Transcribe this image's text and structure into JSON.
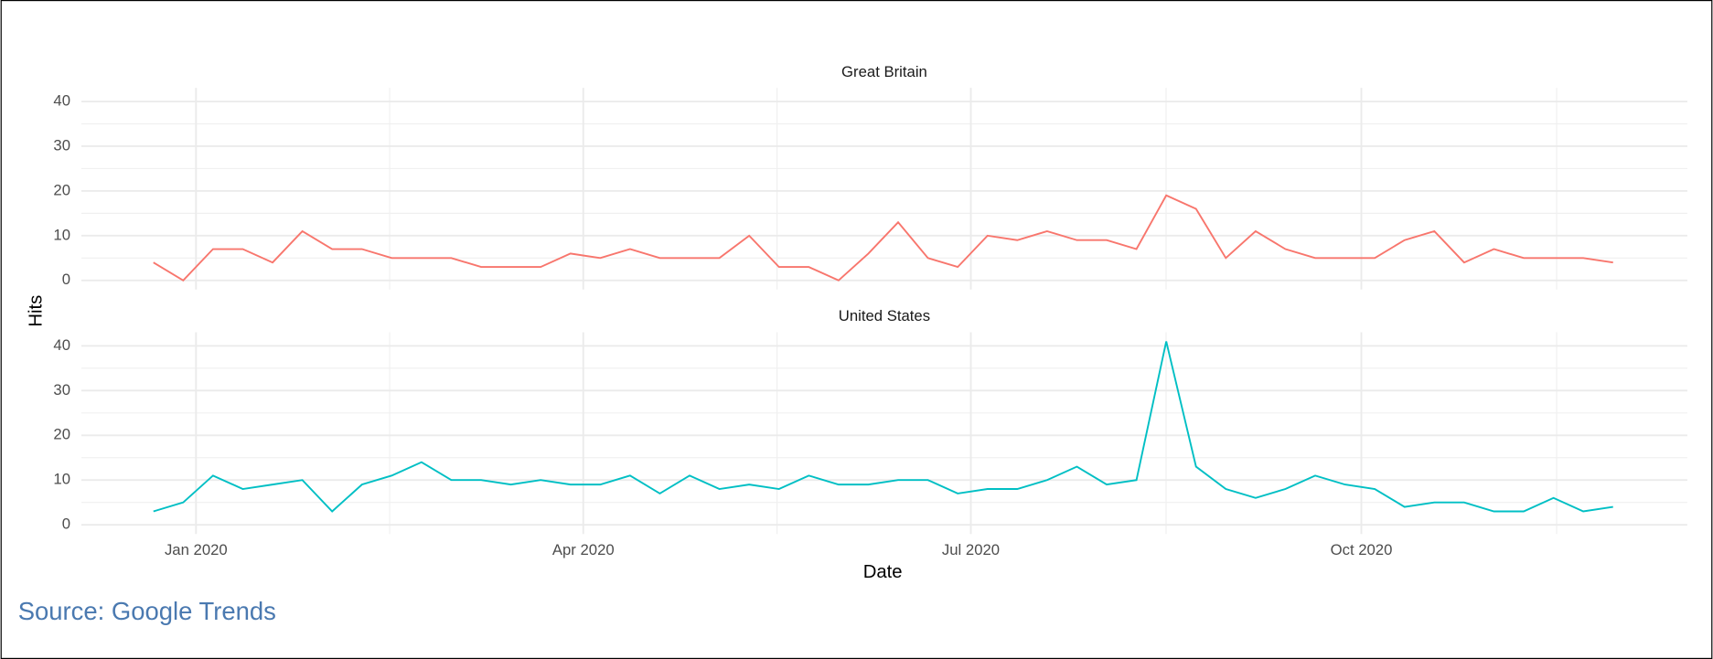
{
  "chart_data": {
    "type": "line",
    "facets": true,
    "x_label": "Date",
    "y_label": "Hits",
    "caption": "Source: Google Trends",
    "categories": [
      null,
      null,
      null,
      null,
      null,
      null,
      null,
      null,
      null,
      null,
      null,
      null,
      null,
      null,
      null,
      null,
      null,
      null,
      null,
      null,
      null,
      null,
      null,
      null,
      null,
      null,
      null,
      null,
      null,
      null,
      null,
      null,
      null,
      null,
      null,
      null,
      null,
      null,
      null,
      null,
      null,
      null,
      null,
      null,
      null,
      null,
      null,
      null,
      null,
      null
    ],
    "xticks": [
      {
        "value": 1.43,
        "label": "Jan 2020"
      },
      {
        "value": 14.43,
        "label": "Apr 2020"
      },
      {
        "value": 27.44,
        "label": "Jul 2020"
      },
      {
        "value": 40.55,
        "label": "Oct 2020"
      }
    ],
    "ylim": [
      -2.05,
      43.05
    ],
    "yticks": [
      0,
      10,
      20,
      30,
      40
    ],
    "grid": true,
    "series": [
      {
        "name": "Great Britain",
        "color": "#F8766D",
        "values": [
          4,
          0,
          7,
          7,
          4,
          11,
          7,
          7,
          5,
          5,
          5,
          3,
          3,
          3,
          6,
          5,
          7,
          5,
          5,
          5,
          10,
          3,
          3,
          0,
          6,
          13,
          5,
          3,
          10,
          9,
          11,
          9,
          9,
          7,
          19,
          16,
          5,
          11,
          7,
          5,
          5,
          5,
          9,
          11,
          4,
          7,
          5,
          5,
          5,
          4
        ]
      },
      {
        "name": "United States",
        "color": "#00BFC4",
        "values": [
          3,
          5,
          11,
          8,
          9,
          10,
          3,
          9,
          11,
          14,
          10,
          10,
          9,
          10,
          9,
          9,
          11,
          7,
          11,
          8,
          9,
          8,
          11,
          9,
          9,
          10,
          10,
          7,
          8,
          8,
          10,
          13,
          9,
          10,
          41,
          13,
          8,
          6,
          8,
          11,
          9,
          8,
          4,
          5,
          5,
          3,
          3,
          6,
          3,
          4
        ]
      }
    ]
  }
}
